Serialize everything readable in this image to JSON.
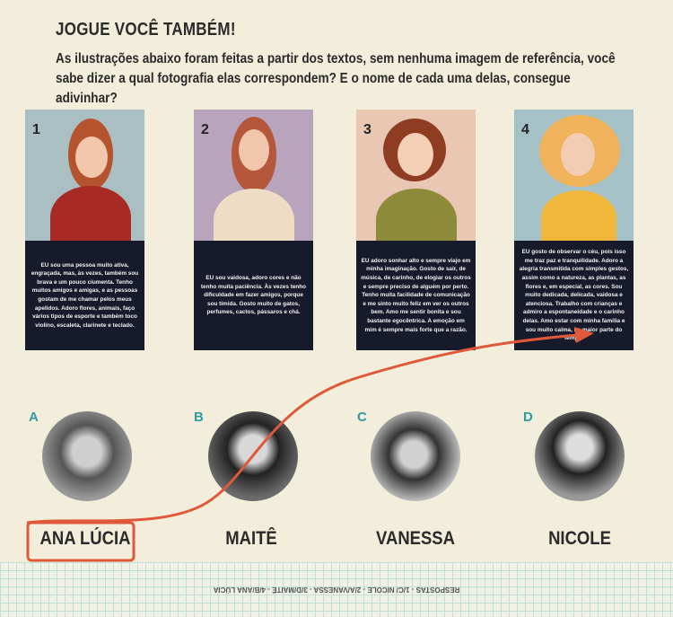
{
  "title": "JOGUE VOCÊ TAMBÉM!",
  "intro": "As ilustrações abaixo foram feitas a partir dos textos, sem nenhuma imagem de referência, você sabe dizer a qual fotografia elas correspondem? E o nome de cada uma delas, consegue adivinhar?",
  "cards": [
    {
      "number": "1",
      "bg": "#a9bfc2",
      "text": "EU sou uma pessoa muito ativa, engraçada, mas, às vezes, também sou brava e um pouco ciumenta. Tenho muitos amigos e amigas, e as pessoas gostam de me chamar pelos meus apelidos. Adoro flores, animais, faço vários tipos de esporte e também toco violino, escaleta, clarinete e teclado."
    },
    {
      "number": "2",
      "bg": "#b9a4bd",
      "text": "EU sou vaidosa, adoro cores e não tenho muita paciência. Às vezes tenho dificuldade em fazer amigos, porque sou tímida. Gosto muito de gatos, perfumes, cactos, pássaros e chá."
    },
    {
      "number": "3",
      "bg": "#e9c7b3",
      "text": "EU adoro sonhar alto e sempre viajo em minha imaginação. Gosto de sair, de música, de carinho, de elogiar os outros e sempre preciso de alguém por perto. Tenho muita facilidade de comunicação e me sinto muito feliz em ver os outros bem. Amo me sentir bonita e sou bastante egocêntrica. A emoção em mim é sempre mais forte que a razão."
    },
    {
      "number": "4",
      "bg": "#a3c1c6",
      "text": "EU gosto de observar o céu, pois isso me traz paz e tranquilidade. Adoro a alegria transmitida com simples gestos, assim como a natureza, as plantas, as flores e, em especial, as cores. Sou muito dedicada, delicada, vaidosa e atenciosa. Trabalho com crianças e admiro a espontaneidade e o carinho delas. Amo estar com minha família e sou muito calma, na maior parte do tempo."
    }
  ],
  "people": [
    {
      "letter": "A",
      "name": "ANA LÚCIA"
    },
    {
      "letter": "B",
      "name": "MAITÊ"
    },
    {
      "letter": "C",
      "name": "VANESSA"
    },
    {
      "letter": "D",
      "name": "NICOLE"
    }
  ],
  "answers": "RESPOSTAS - 1/C/ NICOLE - 2/A/VANESSA - 3/D/MAITÊ - 4/B/ANA LÚCIA",
  "colors": {
    "accent_letter": "#2e9aa0",
    "annotation": "#e0583a",
    "card_text_bg": "#161a2b"
  }
}
